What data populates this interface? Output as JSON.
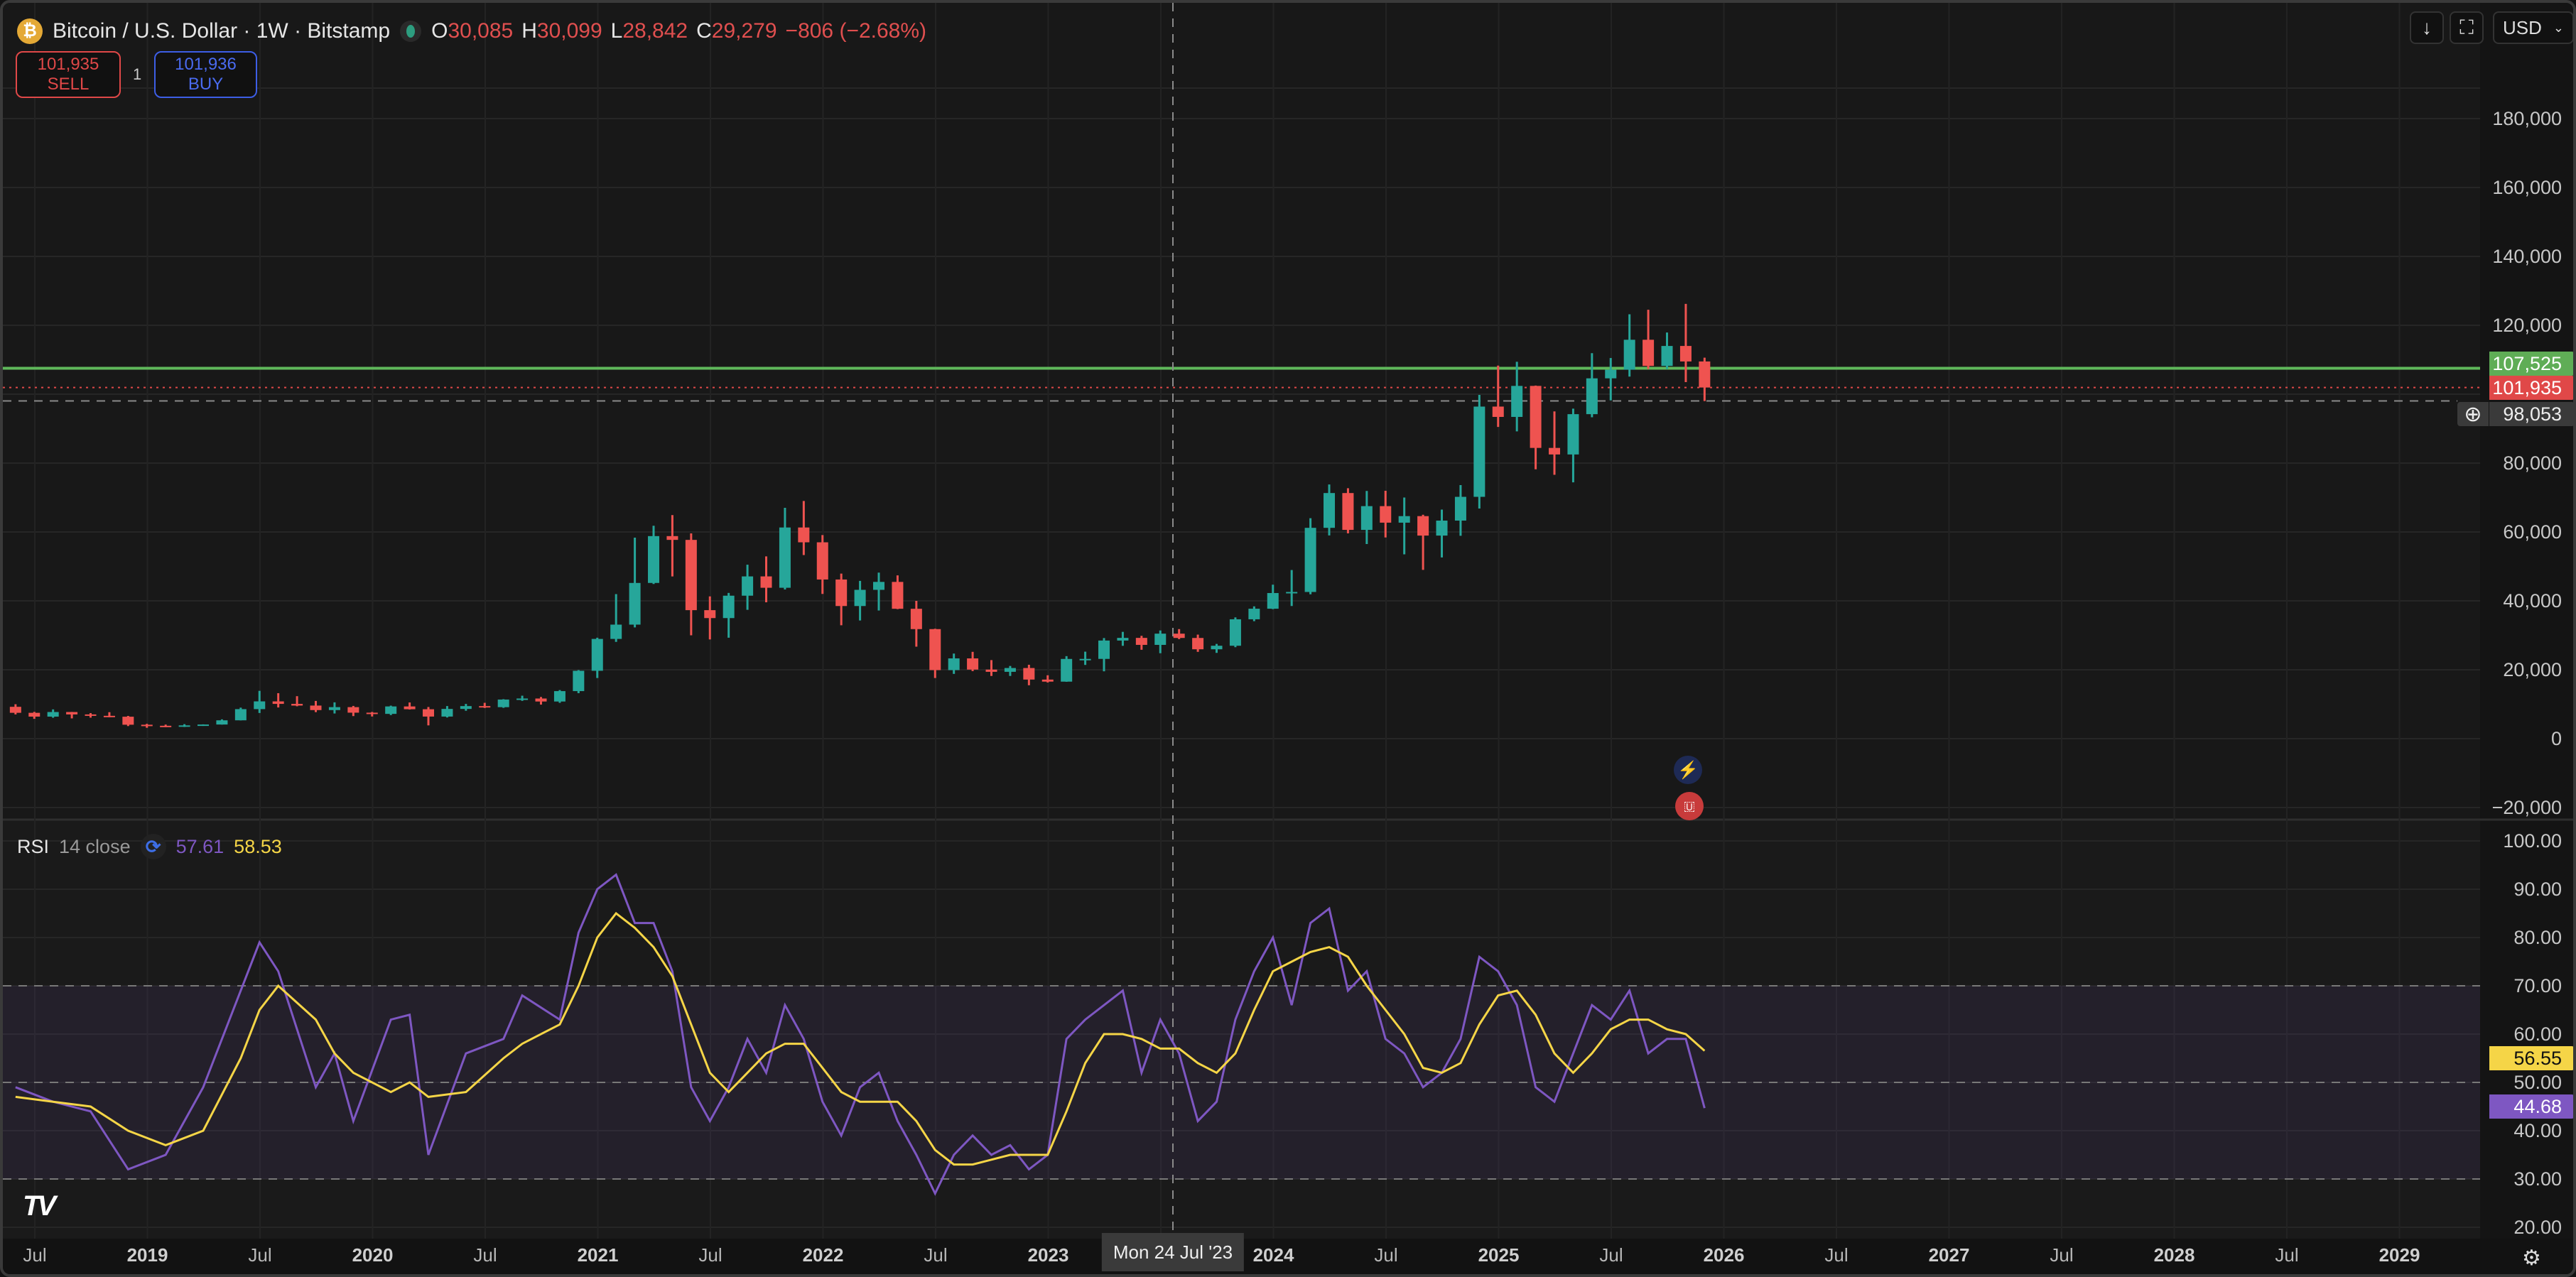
{
  "header": {
    "title": "Bitcoin / U.S. Dollar · 1W · Bitstamp",
    "ohlc": {
      "o_label": "O",
      "o": "30,085",
      "h_label": "H",
      "h": "30,099",
      "l_label": "L",
      "l": "28,842",
      "c_label": "C",
      "c": "29,279",
      "change": "−806 (−2.68%)"
    }
  },
  "trade": {
    "sell_price": "101,935",
    "sell_label": "SELL",
    "quantity": "1",
    "buy_price": "101,936",
    "buy_label": "BUY"
  },
  "toolbar": {
    "currency": "USD",
    "down_icon": "↓",
    "fullscreen_icon": "⛶"
  },
  "price_axis": {
    "ticks": [
      "180,000",
      "160,000",
      "140,000",
      "120,000",
      "80,000",
      "60,000",
      "40,000",
      "20,000",
      "0",
      "−20,000"
    ]
  },
  "price_labels": {
    "line": "107,525",
    "last": "101,935",
    "crosshair": "98,053"
  },
  "time_axis": {
    "ticks": [
      "Jul",
      "2019",
      "Jul",
      "2020",
      "Jul",
      "2021",
      "Jul",
      "2022",
      "Jul",
      "2023",
      "2024",
      "Jul",
      "2025",
      "Jul",
      "2026",
      "Jul",
      "2027",
      "Jul",
      "2028",
      "Jul",
      "2029"
    ],
    "crosshair": "Mon 24 Jul '23"
  },
  "rsi": {
    "name": "RSI",
    "params": "14 close",
    "value": "57.61",
    "ma_value": "58.53",
    "axis": [
      "100.00",
      "90.00",
      "80.00",
      "70.00",
      "60.00",
      "50.00",
      "40.00",
      "30.00",
      "20.00"
    ],
    "last_rsi": "44.68",
    "last_ma": "56.55"
  },
  "colors": {
    "up": "#26a69a",
    "down": "#ef5350",
    "rsi": "#7e57c2",
    "rsi_ma": "#f5d547",
    "line": "#5fb85a",
    "last": "#e04848"
  },
  "chart_data": [
    {
      "type": "candlestick",
      "ylim": [
        -20000,
        200000
      ],
      "horizontal_line": 107525,
      "last_price": 101935,
      "crosshair_price": 98053,
      "columns": [
        "date",
        "open",
        "high",
        "low",
        "close"
      ],
      "ohlc": [
        [
          "2018-05",
          9240,
          9990,
          7030,
          7500
        ],
        [
          "2018-06",
          7500,
          7770,
          5750,
          6390
        ],
        [
          "2018-07",
          6390,
          8490,
          6070,
          7730
        ],
        [
          "2018-08",
          7730,
          7760,
          5880,
          7030
        ],
        [
          "2018-09",
          7030,
          7410,
          6100,
          6630
        ],
        [
          "2018-10",
          6630,
          7680,
          6200,
          6370
        ],
        [
          "2018-11",
          6370,
          6600,
          3650,
          4040
        ],
        [
          "2018-12",
          4040,
          4300,
          3150,
          3740
        ],
        [
          "2019-01",
          3740,
          4080,
          3350,
          3460
        ],
        [
          "2019-02",
          3460,
          4200,
          3390,
          3850
        ],
        [
          "2019-03",
          3850,
          4140,
          3700,
          4100
        ],
        [
          "2019-04",
          4100,
          5600,
          4080,
          5320
        ],
        [
          "2019-05",
          5320,
          9000,
          5300,
          8570
        ],
        [
          "2019-06",
          8570,
          13880,
          7450,
          10820
        ],
        [
          "2019-07",
          10820,
          13200,
          9050,
          10090
        ],
        [
          "2019-08",
          10090,
          12330,
          9400,
          9600
        ],
        [
          "2019-09",
          9600,
          10950,
          7700,
          8290
        ],
        [
          "2019-10",
          8290,
          10540,
          7300,
          9150
        ],
        [
          "2019-11",
          9150,
          9500,
          6550,
          7540
        ],
        [
          "2019-12",
          7540,
          7750,
          6430,
          7190
        ],
        [
          "2020-01",
          7190,
          9580,
          6850,
          9350
        ],
        [
          "2020-02",
          9350,
          10500,
          8450,
          8540
        ],
        [
          "2020-03",
          8540,
          9190,
          3850,
          6410
        ],
        [
          "2020-04",
          6410,
          9460,
          6150,
          8630
        ],
        [
          "2020-05",
          8630,
          10080,
          8100,
          9450
        ],
        [
          "2020-06",
          9450,
          10400,
          8900,
          9140
        ],
        [
          "2020-07",
          9140,
          11450,
          8950,
          11350
        ],
        [
          "2020-08",
          11350,
          12470,
          10970,
          11650
        ],
        [
          "2020-09",
          11650,
          12090,
          9880,
          10780
        ],
        [
          "2020-10",
          10780,
          14100,
          10400,
          13800
        ],
        [
          "2020-11",
          13800,
          19900,
          13200,
          19700
        ],
        [
          "2020-12",
          19700,
          29300,
          17600,
          28950
        ],
        [
          "2021-01",
          28950,
          41950,
          28100,
          33100
        ],
        [
          "2021-02",
          33100,
          58350,
          32300,
          45200
        ],
        [
          "2021-03",
          45200,
          61800,
          44900,
          58800
        ],
        [
          "2021-04",
          58800,
          64900,
          47100,
          57700
        ],
        [
          "2021-05",
          57700,
          59600,
          30000,
          37300
        ],
        [
          "2021-06",
          37300,
          41300,
          28800,
          35000
        ],
        [
          "2021-07",
          35000,
          42300,
          29300,
          41500
        ],
        [
          "2021-08",
          41500,
          50500,
          37400,
          47100
        ],
        [
          "2021-09",
          47100,
          52900,
          39600,
          43800
        ],
        [
          "2021-10",
          43800,
          67000,
          43300,
          61300
        ],
        [
          "2021-11",
          61300,
          69000,
          53300,
          57000
        ],
        [
          "2021-12",
          57000,
          59100,
          42000,
          46200
        ],
        [
          "2022-01",
          46200,
          47900,
          32900,
          38500
        ],
        [
          "2022-02",
          38500,
          45800,
          34300,
          43200
        ],
        [
          "2022-03",
          43200,
          48200,
          37200,
          45500
        ],
        [
          "2022-04",
          45500,
          47400,
          37600,
          37700
        ],
        [
          "2022-05",
          37700,
          40000,
          26700,
          31800
        ],
        [
          "2022-06",
          31800,
          31900,
          17600,
          19900
        ],
        [
          "2022-07",
          19900,
          24700,
          18800,
          23300
        ],
        [
          "2022-08",
          23300,
          25200,
          19600,
          20050
        ],
        [
          "2022-09",
          20050,
          22800,
          18200,
          19400
        ],
        [
          "2022-10",
          19400,
          21100,
          18200,
          20500
        ],
        [
          "2022-11",
          20500,
          21450,
          15500,
          17150
        ],
        [
          "2022-12",
          17150,
          18400,
          16300,
          16550
        ],
        [
          "2023-01",
          16550,
          23950,
          16500,
          23140
        ],
        [
          "2023-02",
          23140,
          25250,
          21400,
          23150
        ],
        [
          "2023-03",
          23150,
          29200,
          19550,
          28480
        ],
        [
          "2023-04",
          28480,
          31000,
          26950,
          29250
        ],
        [
          "2023-05",
          29250,
          29850,
          25800,
          27220
        ],
        [
          "2023-06",
          27220,
          31400,
          24800,
          30480
        ],
        [
          "2023-07",
          30480,
          31800,
          28900,
          29230
        ],
        [
          "2023-08",
          29230,
          30200,
          25200,
          25940
        ],
        [
          "2023-09",
          25940,
          27500,
          24900,
          26970
        ],
        [
          "2023-10",
          26970,
          35200,
          26550,
          34650
        ],
        [
          "2023-11",
          34650,
          38400,
          34100,
          37720
        ],
        [
          "2023-12",
          37720,
          44700,
          37600,
          42270
        ],
        [
          "2024-01",
          42270,
          48950,
          38500,
          42580
        ],
        [
          "2024-02",
          42580,
          64000,
          41900,
          61200
        ],
        [
          "2024-03",
          61200,
          73800,
          59000,
          71300
        ],
        [
          "2024-04",
          71300,
          72700,
          59600,
          60600
        ],
        [
          "2024-05",
          60600,
          71900,
          56500,
          67500
        ],
        [
          "2024-06",
          67500,
          71950,
          58400,
          62700
        ],
        [
          "2024-07",
          62700,
          70000,
          53500,
          64600
        ],
        [
          "2024-08",
          64600,
          65000,
          49000,
          58950
        ],
        [
          "2024-09",
          58950,
          66500,
          52600,
          63300
        ],
        [
          "2024-10",
          63300,
          73600,
          58900,
          70200
        ],
        [
          "2024-11",
          70200,
          99800,
          66800,
          96400
        ],
        [
          "2024-12",
          96400,
          108300,
          90500,
          93400
        ],
        [
          "2025-01",
          93400,
          109400,
          89200,
          102400
        ],
        [
          "2025-02",
          102400,
          102500,
          78200,
          84400
        ],
        [
          "2025-03",
          84400,
          95000,
          76600,
          82500
        ],
        [
          "2025-04",
          82500,
          95800,
          74400,
          94200
        ],
        [
          "2025-05",
          94200,
          111900,
          93300,
          104600
        ],
        [
          "2025-06",
          104600,
          110500,
          98200,
          107100
        ],
        [
          "2025-07",
          107100,
          123200,
          105100,
          115800
        ],
        [
          "2025-08",
          115800,
          124500,
          107300,
          108200
        ],
        [
          "2025-09",
          108200,
          117900,
          107300,
          114000
        ],
        [
          "2025-10",
          114000,
          126200,
          103500,
          109500
        ],
        [
          "2025-11",
          109500,
          110600,
          98000,
          101935
        ]
      ]
    },
    {
      "type": "line",
      "ylim": [
        20,
        100
      ],
      "bands": [
        30,
        50,
        70
      ],
      "dates": [
        "2018-05",
        "2018-07",
        "2018-09",
        "2018-11",
        "2019-01",
        "2019-03",
        "2019-05",
        "2019-06",
        "2019-07",
        "2019-09",
        "2019-10",
        "2019-11",
        "2020-01",
        "2020-02",
        "2020-03",
        "2020-05",
        "2020-07",
        "2020-08",
        "2020-10",
        "2020-11",
        "2020-12",
        "2021-01",
        "2021-02",
        "2021-03",
        "2021-04",
        "2021-05",
        "2021-06",
        "2021-07",
        "2021-08",
        "2021-09",
        "2021-10",
        "2021-11",
        "2021-12",
        "2022-01",
        "2022-02",
        "2022-03",
        "2022-04",
        "2022-05",
        "2022-06",
        "2022-07",
        "2022-08",
        "2022-09",
        "2022-10",
        "2022-11",
        "2022-12",
        "2023-01",
        "2023-02",
        "2023-03",
        "2023-04",
        "2023-05",
        "2023-06",
        "2023-07",
        "2023-08",
        "2023-09",
        "2023-10",
        "2023-11",
        "2023-12",
        "2024-01",
        "2024-02",
        "2024-03",
        "2024-04",
        "2024-05",
        "2024-06",
        "2024-07",
        "2024-08",
        "2024-09",
        "2024-10",
        "2024-11",
        "2024-12",
        "2025-01",
        "2025-02",
        "2025-03",
        "2025-04",
        "2025-05",
        "2025-06",
        "2025-07",
        "2025-08",
        "2025-09",
        "2025-10",
        "2025-11"
      ],
      "series": [
        {
          "name": "RSI",
          "values": [
            49,
            46,
            44,
            32,
            35,
            49,
            69,
            79,
            73,
            49,
            56,
            42,
            63,
            64,
            35,
            56,
            59,
            68,
            63,
            81,
            90,
            93,
            83,
            83,
            73,
            49,
            42,
            49,
            59,
            52,
            66,
            59,
            46,
            39,
            49,
            52,
            42,
            35,
            27,
            35,
            39,
            35,
            37,
            32,
            35,
            59,
            63,
            66,
            69,
            52,
            63,
            56,
            42,
            46,
            63,
            73,
            80,
            66,
            83,
            86,
            69,
            73,
            59,
            56,
            49,
            52,
            59,
            76,
            73,
            66,
            49,
            46,
            56,
            66,
            63,
            69,
            56,
            59,
            59,
            44.68
          ]
        },
        {
          "values": [
            47,
            46,
            45,
            40,
            37,
            40,
            55,
            65,
            70,
            63,
            56,
            52,
            48,
            50,
            47,
            48,
            55,
            58,
            62,
            70,
            80,
            85,
            82,
            78,
            72,
            62,
            52,
            48,
            52,
            56,
            58,
            58,
            53,
            48,
            46,
            46,
            46,
            42,
            36,
            33,
            33,
            34,
            35,
            35,
            35,
            44,
            54,
            60,
            60,
            59,
            57,
            57,
            54,
            52,
            56,
            65,
            73,
            75,
            77,
            78,
            76,
            70,
            65,
            60,
            53,
            52,
            54,
            62,
            68,
            69,
            64,
            56,
            52,
            56,
            61,
            63,
            63,
            61,
            60,
            56.55
          ]
        }
      ]
    }
  ]
}
